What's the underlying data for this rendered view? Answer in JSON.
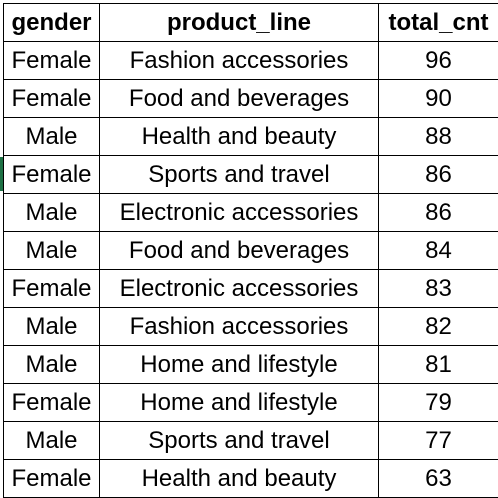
{
  "table": {
    "headers": {
      "gender": "gender",
      "product_line": "product_line",
      "total_cnt": "total_cnt"
    },
    "rows": [
      {
        "gender": "Female",
        "product_line": "Fashion accessories",
        "total_cnt": "96"
      },
      {
        "gender": "Female",
        "product_line": "Food and beverages",
        "total_cnt": "90"
      },
      {
        "gender": "Male",
        "product_line": "Health and beauty",
        "total_cnt": "88"
      },
      {
        "gender": "Female",
        "product_line": "Sports and travel",
        "total_cnt": "86"
      },
      {
        "gender": "Male",
        "product_line": "Electronic accessories",
        "total_cnt": "86"
      },
      {
        "gender": "Male",
        "product_line": "Food and beverages",
        "total_cnt": "84"
      },
      {
        "gender": "Female",
        "product_line": "Electronic accessories",
        "total_cnt": "83"
      },
      {
        "gender": "Male",
        "product_line": "Fashion accessories",
        "total_cnt": "82"
      },
      {
        "gender": "Male",
        "product_line": "Home and lifestyle",
        "total_cnt": "81"
      },
      {
        "gender": "Female",
        "product_line": "Home and lifestyle",
        "total_cnt": "79"
      },
      {
        "gender": "Male",
        "product_line": "Sports and travel",
        "total_cnt": "77"
      },
      {
        "gender": "Female",
        "product_line": "Health and beauty",
        "total_cnt": "63"
      }
    ]
  },
  "colors": {
    "grid_line": "#000000",
    "active_cell_marker": "#1e7145",
    "background": "#ffffff"
  }
}
